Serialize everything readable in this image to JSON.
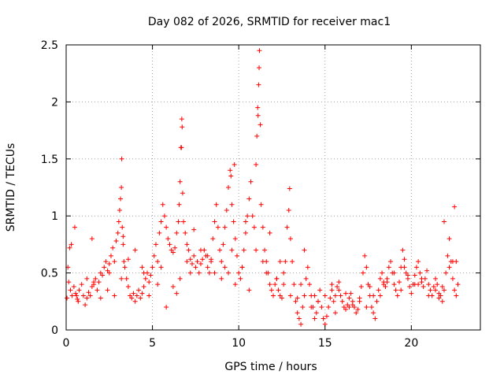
{
  "chart_data": {
    "type": "scatter",
    "title": "Day 082 of 2026, SRMTID for receiver mac1",
    "xlabel": "GPS time / hours",
    "ylabel": "SRMTID / TECUs",
    "xlim": [
      0,
      24
    ],
    "ylim": [
      0,
      2.5
    ],
    "xticks": [
      0,
      5,
      10,
      15,
      20
    ],
    "yticks": [
      0,
      0.5,
      1,
      1.5,
      2,
      2.5
    ],
    "xtick_labels": [
      "0",
      "5",
      "10",
      "15",
      "20"
    ],
    "ytick_labels": [
      "0",
      "0.5",
      "1",
      "1.5",
      "2",
      "2.5"
    ],
    "grid": true,
    "marker": "+",
    "color": "#ff0000",
    "series": [
      {
        "name": "SRMTID",
        "x": [
          0.05,
          0.15,
          0.25,
          0.35,
          0.45,
          0.55,
          0.65,
          0.75,
          0.9,
          1.0,
          1.1,
          1.2,
          1.3,
          1.4,
          1.5,
          1.6,
          1.7,
          1.8,
          1.9,
          2.0,
          2.1,
          2.2,
          2.3,
          2.4,
          2.5,
          2.6,
          2.7,
          2.8,
          2.9,
          3.0,
          3.05,
          3.1,
          3.15,
          3.2,
          3.25,
          3.3,
          3.35,
          3.4,
          3.5,
          3.6,
          3.7,
          3.8,
          3.9,
          4.0,
          4.1,
          4.2,
          4.3,
          4.4,
          4.5,
          4.6,
          4.7,
          4.8,
          4.9,
          5.0,
          5.1,
          5.2,
          5.3,
          5.4,
          5.5,
          5.6,
          5.7,
          5.8,
          5.9,
          6.0,
          6.1,
          6.2,
          6.3,
          6.4,
          6.5,
          6.55,
          6.6,
          6.65,
          6.7,
          6.75,
          6.8,
          6.9,
          7.0,
          7.1,
          7.2,
          7.3,
          7.4,
          7.5,
          7.6,
          7.7,
          7.8,
          7.9,
          8.0,
          8.1,
          8.2,
          8.3,
          8.4,
          8.5,
          8.6,
          8.7,
          8.8,
          8.9,
          9.0,
          9.1,
          9.2,
          9.3,
          9.4,
          9.5,
          9.6,
          9.7,
          9.8,
          9.9,
          10.0,
          10.1,
          10.2,
          10.3,
          10.4,
          10.5,
          10.6,
          10.7,
          10.8,
          10.9,
          11.0,
          11.05,
          11.1,
          11.15,
          11.2,
          11.25,
          11.3,
          11.4,
          11.5,
          11.6,
          11.7,
          11.8,
          11.9,
          12.0,
          12.1,
          12.2,
          12.3,
          12.4,
          12.5,
          12.6,
          12.7,
          12.8,
          12.9,
          13.0,
          13.1,
          13.2,
          13.3,
          13.4,
          13.5,
          13.6,
          13.7,
          13.8,
          13.9,
          14.0,
          14.1,
          14.2,
          14.3,
          14.4,
          14.5,
          14.6,
          14.7,
          14.8,
          14.9,
          15.0,
          15.1,
          15.2,
          15.3,
          15.4,
          15.5,
          15.6,
          15.7,
          15.8,
          15.9,
          16.0,
          16.1,
          16.2,
          16.3,
          16.4,
          16.5,
          16.6,
          16.7,
          16.8,
          16.9,
          17.0,
          17.1,
          17.2,
          17.3,
          17.4,
          17.5,
          17.6,
          17.7,
          17.8,
          17.9,
          18.0,
          18.1,
          18.2,
          18.3,
          18.4,
          18.5,
          18.6,
          18.7,
          18.8,
          18.9,
          19.0,
          19.1,
          19.2,
          19.3,
          19.4,
          19.5,
          19.6,
          19.7,
          19.8,
          19.9,
          20.0,
          20.1,
          20.2,
          20.3,
          20.4,
          20.5,
          20.6,
          20.7,
          20.8,
          20.9,
          21.0,
          21.1,
          21.2,
          21.3,
          21.4,
          21.5,
          21.6,
          21.7,
          21.8,
          21.9,
          22.0,
          22.1,
          22.2,
          22.3,
          22.4,
          22.5,
          22.6,
          22.7,
          0.1,
          0.3,
          0.5,
          0.7,
          1.2,
          1.6,
          2.0,
          2.4,
          2.8,
          3.2,
          3.6,
          4.0,
          4.4,
          4.8,
          5.3,
          5.8,
          6.2,
          6.6,
          7.0,
          7.4,
          7.8,
          8.2,
          8.6,
          9.0,
          9.4,
          9.8,
          10.2,
          10.6,
          11.0,
          11.4,
          11.8,
          12.2,
          12.6,
          13.0,
          13.4,
          13.8,
          14.2,
          14.6,
          15.0,
          15.4,
          15.8,
          16.2,
          16.6,
          17.0,
          17.4,
          17.8,
          18.2,
          18.6,
          19.0,
          19.4,
          19.8,
          20.2,
          20.6,
          21.0,
          21.4,
          21.8,
          22.2,
          22.6,
          0.2,
          0.6,
          1.5,
          2.5,
          3.3,
          4.5,
          5.5,
          6.4,
          7.2,
          8.4,
          9.2,
          9.6,
          10.4,
          11.6,
          12.4,
          13.6,
          14.4,
          15.6,
          16.4,
          17.6,
          18.4,
          19.6,
          20.4,
          21.6,
          22.4,
          6.68,
          6.72,
          9.55,
          9.75,
          11.12,
          11.18,
          3.22,
          12.95,
          22.5,
          21.9
        ],
        "y": [
          0.28,
          0.42,
          0.35,
          0.3,
          0.38,
          0.32,
          0.27,
          0.35,
          0.4,
          0.3,
          0.22,
          0.28,
          0.33,
          0.3,
          0.38,
          0.42,
          0.45,
          0.35,
          0.42,
          0.5,
          0.48,
          0.55,
          0.6,
          0.52,
          0.58,
          0.65,
          0.72,
          0.6,
          0.78,
          0.85,
          0.95,
          1.05,
          1.15,
          1.25,
          0.9,
          0.75,
          0.6,
          0.55,
          0.45,
          0.38,
          0.3,
          0.28,
          0.32,
          0.25,
          0.3,
          0.35,
          0.28,
          0.32,
          0.38,
          0.45,
          0.5,
          0.42,
          0.48,
          0.55,
          0.65,
          0.75,
          0.6,
          0.85,
          0.95,
          1.1,
          1.0,
          0.9,
          0.8,
          0.75,
          0.7,
          0.68,
          0.72,
          0.85,
          0.95,
          1.1,
          1.3,
          1.6,
          1.85,
          1.2,
          0.95,
          0.85,
          0.75,
          0.7,
          0.62,
          0.58,
          0.65,
          0.55,
          0.6,
          0.5,
          0.58,
          0.62,
          0.7,
          0.65,
          0.55,
          0.5,
          0.6,
          0.8,
          0.95,
          1.1,
          0.9,
          0.7,
          0.6,
          0.75,
          0.9,
          1.05,
          1.25,
          1.4,
          1.1,
          0.95,
          0.8,
          0.65,
          0.5,
          0.45,
          0.55,
          0.7,
          0.85,
          1.0,
          1.15,
          1.3,
          1.0,
          0.9,
          1.45,
          1.7,
          1.95,
          2.15,
          2.45,
          1.8,
          1.1,
          0.9,
          0.7,
          0.6,
          0.5,
          0.4,
          0.35,
          0.3,
          0.4,
          0.45,
          0.35,
          0.3,
          0.28,
          0.4,
          0.6,
          0.9,
          1.05,
          0.8,
          0.6,
          0.4,
          0.25,
          0.15,
          0.1,
          0.05,
          0.2,
          0.3,
          0.45,
          0.55,
          0.4,
          0.3,
          0.2,
          0.1,
          0.15,
          0.25,
          0.35,
          0.2,
          0.1,
          0.05,
          0.12,
          0.2,
          0.28,
          0.35,
          0.25,
          0.3,
          0.38,
          0.42,
          0.3,
          0.25,
          0.2,
          0.18,
          0.22,
          0.28,
          0.32,
          0.25,
          0.2,
          0.15,
          0.18,
          0.28,
          0.38,
          0.5,
          0.65,
          0.55,
          0.4,
          0.3,
          0.2,
          0.15,
          0.1,
          0.25,
          0.35,
          0.45,
          0.5,
          0.4,
          0.38,
          0.45,
          0.55,
          0.6,
          0.5,
          0.4,
          0.35,
          0.3,
          0.42,
          0.55,
          0.7,
          0.62,
          0.5,
          0.45,
          0.38,
          0.32,
          0.4,
          0.48,
          0.55,
          0.6,
          0.5,
          0.42,
          0.38,
          0.45,
          0.52,
          0.4,
          0.35,
          0.3,
          0.38,
          0.45,
          0.4,
          0.32,
          0.3,
          0.25,
          0.35,
          0.5,
          0.65,
          0.8,
          0.6,
          0.45,
          0.35,
          0.3,
          0.4,
          0.55,
          0.75,
          0.9,
          0.25,
          0.45,
          0.4,
          0.28,
          0.35,
          0.3,
          0.45,
          0.62,
          0.7,
          0.55,
          0.3,
          0.4,
          0.2,
          0.38,
          0.45,
          0.6,
          0.88,
          0.7,
          0.65,
          0.5,
          0.45,
          0.5,
          0.4,
          0.55,
          0.35,
          0.7,
          0.6,
          0.85,
          0.45,
          0.5,
          0.3,
          0.28,
          0.7,
          0.2,
          0.25,
          0.3,
          0.4,
          0.35,
          0.32,
          0.22,
          0.25,
          0.2,
          0.3,
          0.3,
          0.42,
          0.5,
          0.35,
          0.48,
          0.4,
          0.45,
          0.3,
          0.35,
          0.38,
          0.55,
          0.6,
          0.72,
          0.3,
          0.8,
          0.5,
          0.82,
          0.5,
          0.55,
          0.32,
          0.5,
          0.62,
          0.55,
          0.7,
          0.95,
          0.5,
          0.6,
          0.4,
          0.3,
          0.15,
          0.2,
          0.38,
          0.42,
          0.55,
          0.4,
          0.28,
          0.6,
          1.6,
          1.78,
          1.35,
          1.45,
          1.88,
          2.3,
          1.5,
          1.24,
          1.08,
          0.95
        ]
      }
    ]
  }
}
